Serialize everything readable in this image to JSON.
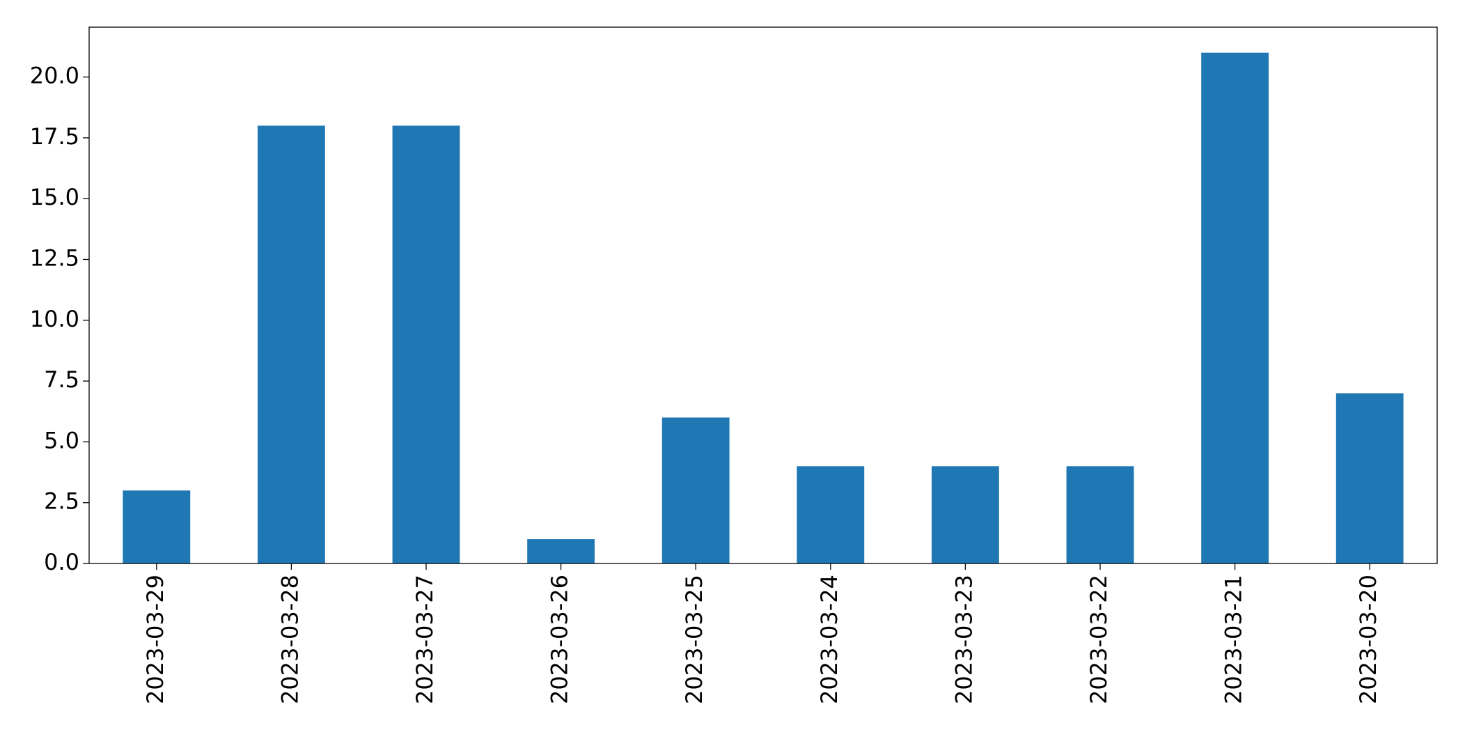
{
  "chart_data": {
    "type": "bar",
    "categories": [
      "2023-03-29",
      "2023-03-28",
      "2023-03-27",
      "2023-03-26",
      "2023-03-25",
      "2023-03-24",
      "2023-03-23",
      "2023-03-22",
      "2023-03-21",
      "2023-03-20"
    ],
    "values": [
      3,
      18,
      18,
      1,
      6,
      4,
      4,
      4,
      21,
      7
    ],
    "color": "#1f77b4",
    "ylim": [
      0,
      22.05
    ],
    "yticks": [
      {
        "value": 0,
        "label": "0.0"
      },
      2.5,
      {
        "value": 5,
        "label": "5.0"
      },
      7.5,
      {
        "value": 10,
        "label": "10.0"
      },
      12.5,
      {
        "value": 15,
        "label": "15.0"
      },
      17.5,
      {
        "value": 20,
        "label": "20.0"
      }
    ],
    "grid": false
  }
}
